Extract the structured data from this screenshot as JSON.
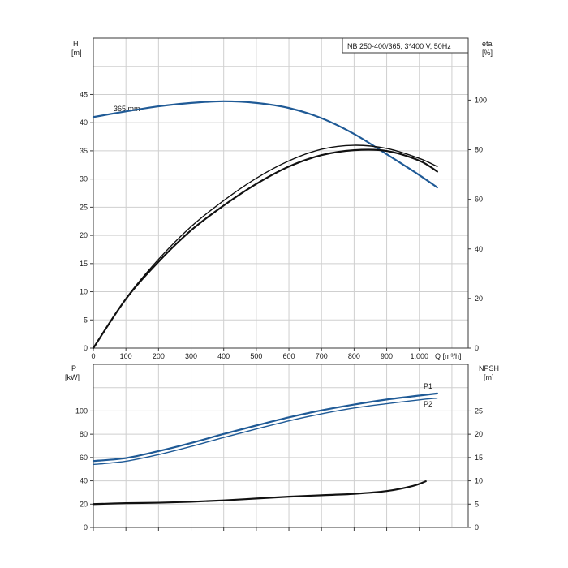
{
  "chart_data": [
    {
      "type": "line",
      "title": "NB 250-400/365, 3*400 V, 50Hz",
      "curve_label": "365 mm",
      "x": {
        "label": "Q [m³/h]",
        "range": [
          0,
          1150
        ],
        "ticks": [
          0,
          100,
          200,
          300,
          400,
          500,
          600,
          700,
          800,
          900,
          1000
        ],
        "tick_labels": [
          "0",
          "100",
          "200",
          "300",
          "400",
          "500",
          "600",
          "700",
          "800",
          "900",
          "1,000"
        ]
      },
      "y_left": {
        "label": "H",
        "unit": "[m]",
        "range": [
          0,
          55
        ],
        "ticks": [
          0,
          5,
          10,
          15,
          20,
          25,
          30,
          35,
          40,
          45
        ]
      },
      "y_right": {
        "label": "eta",
        "unit": "[%]",
        "range": [
          0,
          125
        ],
        "ticks": [
          0,
          20,
          40,
          60,
          80,
          100
        ]
      },
      "grid": true,
      "series": [
        {
          "name": "",
          "axis": "left",
          "color": "#1f5a96",
          "points": [
            [
              0,
              41.0
            ],
            [
              100,
              42.0
            ],
            [
              200,
              42.9
            ],
            [
              300,
              43.5
            ],
            [
              400,
              43.8
            ],
            [
              500,
              43.5
            ],
            [
              600,
              42.6
            ],
            [
              700,
              40.8
            ],
            [
              800,
              38.0
            ],
            [
              900,
              34.4
            ],
            [
              1000,
              30.7
            ],
            [
              1055,
              28.5
            ]
          ]
        },
        {
          "name": "",
          "axis": "right",
          "color": "#111111",
          "points": [
            [
              0,
              0
            ],
            [
              100,
              20
            ],
            [
              200,
              35.8
            ],
            [
              300,
              49
            ],
            [
              400,
              59.5
            ],
            [
              500,
              68.5
            ],
            [
              600,
              75.5
            ],
            [
              700,
              80.2
            ],
            [
              800,
              81.8
            ],
            [
              900,
              80.5
            ],
            [
              1000,
              76.5
            ],
            [
              1055,
              73.2
            ]
          ]
        },
        {
          "name": "",
          "axis": "right",
          "color": "#111111",
          "points": [
            [
              0,
              0
            ],
            [
              100,
              19.8
            ],
            [
              200,
              34.8
            ],
            [
              300,
              47.5
            ],
            [
              400,
              57.5
            ],
            [
              500,
              66.2
            ],
            [
              600,
              73.2
            ],
            [
              700,
              77.8
            ],
            [
              800,
              79.8
            ],
            [
              900,
              79.5
            ],
            [
              1000,
              75.6
            ],
            [
              1055,
              71.2
            ]
          ]
        }
      ]
    },
    {
      "type": "line",
      "x": {
        "label": "",
        "range": [
          0,
          1150
        ],
        "ticks": [
          0,
          100,
          200,
          300,
          400,
          500,
          600,
          700,
          800,
          900,
          1000
        ]
      },
      "y_left": {
        "label": "P",
        "unit": "[kW]",
        "range": [
          0,
          140
        ],
        "ticks": [
          0,
          20,
          40,
          60,
          80,
          100
        ]
      },
      "y_right": {
        "label": "NPSH",
        "unit": "[m]",
        "range": [
          0,
          35
        ],
        "ticks": [
          0,
          5,
          10,
          15,
          20,
          25
        ]
      },
      "grid": true,
      "series": [
        {
          "name": "P1",
          "axis": "left",
          "color": "#1f5a96",
          "points": [
            [
              0,
              57
            ],
            [
              100,
              59.5
            ],
            [
              200,
              65.5
            ],
            [
              300,
              72.5
            ],
            [
              400,
              80.2
            ],
            [
              500,
              87.5
            ],
            [
              600,
              94.5
            ],
            [
              700,
              100.5
            ],
            [
              800,
              105.5
            ],
            [
              900,
              109.8
            ],
            [
              1000,
              113.2
            ],
            [
              1055,
              115
            ]
          ]
        },
        {
          "name": "P2",
          "axis": "left",
          "color": "#1f5a96",
          "points": [
            [
              0,
              54
            ],
            [
              100,
              56.8
            ],
            [
              200,
              62.5
            ],
            [
              300,
              69.5
            ],
            [
              400,
              77.2
            ],
            [
              500,
              84.5
            ],
            [
              600,
              91.5
            ],
            [
              700,
              97.5
            ],
            [
              800,
              102.5
            ],
            [
              900,
              106.2
            ],
            [
              1000,
              109.5
            ],
            [
              1055,
              111
            ]
          ]
        },
        {
          "name": "",
          "axis": "right",
          "color": "#111111",
          "points": [
            [
              0,
              5.0
            ],
            [
              100,
              5.2
            ],
            [
              200,
              5.3
            ],
            [
              300,
              5.5
            ],
            [
              400,
              5.8
            ],
            [
              500,
              6.2
            ],
            [
              600,
              6.6
            ],
            [
              700,
              6.9
            ],
            [
              800,
              7.2
            ],
            [
              900,
              7.8
            ],
            [
              980,
              8.9
            ],
            [
              1020,
              9.9
            ]
          ]
        }
      ]
    }
  ]
}
